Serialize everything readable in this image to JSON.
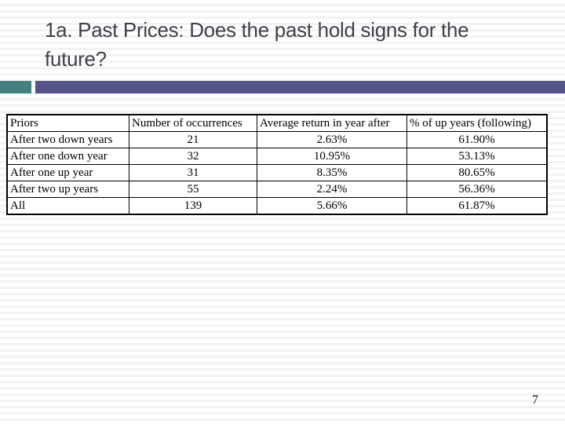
{
  "slide": {
    "title": "1a. Past Prices: Does the past hold signs for the future?",
    "page_number": "7"
  },
  "colors": {
    "accent_teal": "#45817e",
    "accent_purple": "#54548a",
    "title_text": "#3f3f48",
    "table_border": "#000000",
    "stripe": "#f3f3f4"
  },
  "table": {
    "columns": [
      "Priors",
      "Number of occurrences",
      "Average return in year after",
      "% of up years (following)"
    ],
    "rows": [
      {
        "prior": "After two down years",
        "occurrences": "21",
        "avg_return": "2.63%",
        "pct_up": "61.90%"
      },
      {
        "prior": "After one down year",
        "occurrences": "32",
        "avg_return": "10.95%",
        "pct_up": "53.13%"
      },
      {
        "prior": "After one up year",
        "occurrences": "31",
        "avg_return": "8.35%",
        "pct_up": "80.65%"
      },
      {
        "prior": "After two up years",
        "occurrences": "55",
        "avg_return": "2.24%",
        "pct_up": "56.36%"
      },
      {
        "prior": "All",
        "occurrences": "139",
        "avg_return": "5.66%",
        "pct_up": "61.87%"
      }
    ]
  },
  "chart_data": {
    "type": "table",
    "title": "1a. Past Prices: Does the past hold signs for the future?",
    "categories": [
      "After two down years",
      "After one down year",
      "After one up year",
      "After two up years",
      "All"
    ],
    "series": [
      {
        "name": "Number of occurrences",
        "values": [
          21,
          32,
          31,
          55,
          139
        ]
      },
      {
        "name": "Average return in year after (%)",
        "values": [
          2.63,
          10.95,
          8.35,
          2.24,
          5.66
        ]
      },
      {
        "name": "% of up years (following)",
        "values": [
          61.9,
          53.13,
          80.65,
          56.36,
          61.87
        ]
      }
    ]
  }
}
